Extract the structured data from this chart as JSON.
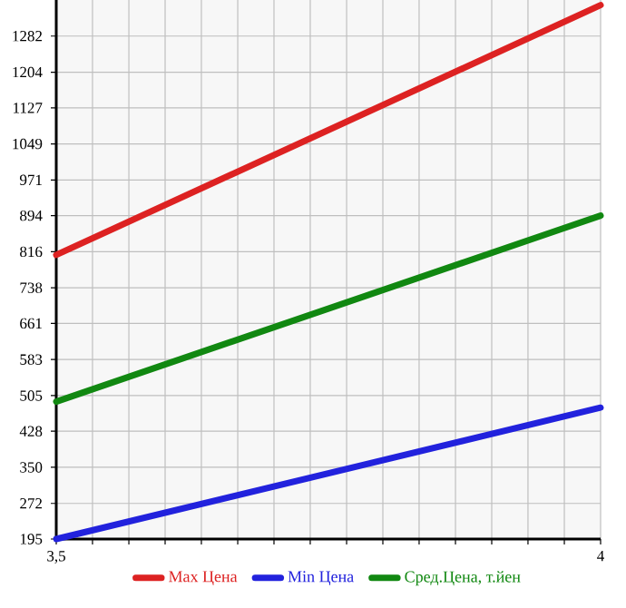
{
  "chart_data": {
    "type": "line",
    "x": [
      3.5,
      4
    ],
    "series": [
      {
        "name": "Max Цена",
        "color": "#dd2222",
        "values": [
          809,
          1349
        ]
      },
      {
        "name": "Min Цена",
        "color": "#2222dd",
        "values": [
          195,
          479
        ]
      },
      {
        "name": "Сред.Цена, т.йен",
        "color": "#118811",
        "values": [
          492,
          894
        ]
      }
    ],
    "xlim": [
      3.5,
      4
    ],
    "xticks": [
      {
        "value": 3.5,
        "label": "3,5"
      },
      {
        "value": 3.5333,
        "label": null
      },
      {
        "value": 3.5667,
        "label": null
      },
      {
        "value": 3.6,
        "label": null
      },
      {
        "value": 3.6333,
        "label": null
      },
      {
        "value": 3.6667,
        "label": null
      },
      {
        "value": 3.7,
        "label": null
      },
      {
        "value": 3.7333,
        "label": null
      },
      {
        "value": 3.7667,
        "label": null
      },
      {
        "value": 3.8,
        "label": null
      },
      {
        "value": 3.8333,
        "label": null
      },
      {
        "value": 3.8667,
        "label": null
      },
      {
        "value": 3.9,
        "label": null
      },
      {
        "value": 3.9333,
        "label": null
      },
      {
        "value": 3.9667,
        "label": null
      },
      {
        "value": 4,
        "label": "4"
      }
    ],
    "ylim": [
      195,
      1360
    ],
    "yticks": [
      195,
      272,
      350,
      428,
      505,
      583,
      661,
      738,
      816,
      894,
      971,
      1049,
      1127,
      1204,
      1282
    ],
    "grid": true,
    "legend": "bottom",
    "marker": "none",
    "line_style": "solid"
  }
}
